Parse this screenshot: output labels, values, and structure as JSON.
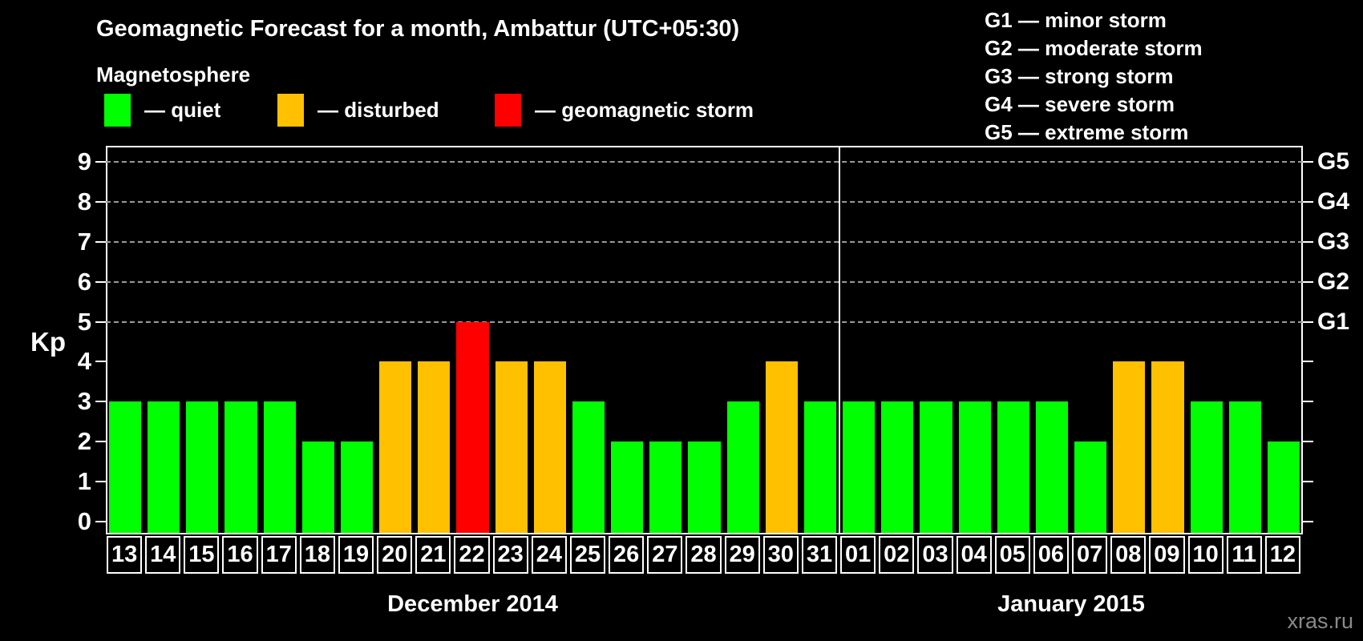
{
  "title": "Geomagnetic Forecast for a month, Ambattur (UTC+05:30)",
  "subtitle": "Magnetosphere",
  "legend": {
    "items": [
      {
        "key": "quiet",
        "label": "— quiet",
        "color": "#00ff00"
      },
      {
        "key": "disturbed",
        "label": "— disturbed",
        "color": "#ffc000"
      },
      {
        "key": "storm",
        "label": "— geomagnetic storm",
        "color": "#ff0000"
      }
    ]
  },
  "g_scale_legend": [
    "G1 — minor storm",
    "G2 — moderate storm",
    "G3 — strong storm",
    "G4 — severe storm",
    "G5 — extreme storm"
  ],
  "y_axis": {
    "label": "Kp",
    "ticks": [
      0,
      1,
      2,
      3,
      4,
      5,
      6,
      7,
      8,
      9
    ],
    "g_ticks": [
      {
        "kp": 5,
        "label": "G1"
      },
      {
        "kp": 6,
        "label": "G2"
      },
      {
        "kp": 7,
        "label": "G3"
      },
      {
        "kp": 8,
        "label": "G4"
      },
      {
        "kp": 9,
        "label": "G5"
      }
    ]
  },
  "watermark": "xras.ru",
  "chart_data": {
    "type": "bar",
    "ylabel": "Kp",
    "ylim": [
      0,
      9
    ],
    "gridlines_at": [
      5,
      6,
      7,
      8,
      9
    ],
    "grid": "dashed, only at Kp 5-9",
    "legend_position": "top-left",
    "state_colors": {
      "quiet": "#00ff00",
      "disturbed": "#ffc000",
      "storm": "#ff0000"
    },
    "months": [
      {
        "label": "December 2014",
        "days": [
          {
            "day": "13",
            "kp": 3,
            "state": "quiet"
          },
          {
            "day": "14",
            "kp": 3,
            "state": "quiet"
          },
          {
            "day": "15",
            "kp": 3,
            "state": "quiet"
          },
          {
            "day": "16",
            "kp": 3,
            "state": "quiet"
          },
          {
            "day": "17",
            "kp": 3,
            "state": "quiet"
          },
          {
            "day": "18",
            "kp": 2,
            "state": "quiet"
          },
          {
            "day": "19",
            "kp": 2,
            "state": "quiet"
          },
          {
            "day": "20",
            "kp": 4,
            "state": "disturbed"
          },
          {
            "day": "21",
            "kp": 4,
            "state": "disturbed"
          },
          {
            "day": "22",
            "kp": 5,
            "state": "storm"
          },
          {
            "day": "23",
            "kp": 4,
            "state": "disturbed"
          },
          {
            "day": "24",
            "kp": 4,
            "state": "disturbed"
          },
          {
            "day": "25",
            "kp": 3,
            "state": "quiet"
          },
          {
            "day": "26",
            "kp": 2,
            "state": "quiet"
          },
          {
            "day": "27",
            "kp": 2,
            "state": "quiet"
          },
          {
            "day": "28",
            "kp": 2,
            "state": "quiet"
          },
          {
            "day": "29",
            "kp": 3,
            "state": "quiet"
          },
          {
            "day": "30",
            "kp": 4,
            "state": "disturbed"
          },
          {
            "day": "31",
            "kp": 3,
            "state": "quiet"
          }
        ]
      },
      {
        "label": "January 2015",
        "days": [
          {
            "day": "01",
            "kp": 3,
            "state": "quiet"
          },
          {
            "day": "02",
            "kp": 3,
            "state": "quiet"
          },
          {
            "day": "03",
            "kp": 3,
            "state": "quiet"
          },
          {
            "day": "04",
            "kp": 3,
            "state": "quiet"
          },
          {
            "day": "05",
            "kp": 3,
            "state": "quiet"
          },
          {
            "day": "06",
            "kp": 3,
            "state": "quiet"
          },
          {
            "day": "07",
            "kp": 2,
            "state": "quiet"
          },
          {
            "day": "08",
            "kp": 4,
            "state": "disturbed"
          },
          {
            "day": "09",
            "kp": 4,
            "state": "disturbed"
          },
          {
            "day": "10",
            "kp": 3,
            "state": "quiet"
          },
          {
            "day": "11",
            "kp": 3,
            "state": "quiet"
          },
          {
            "day": "12",
            "kp": 2,
            "state": "quiet"
          }
        ]
      }
    ]
  }
}
